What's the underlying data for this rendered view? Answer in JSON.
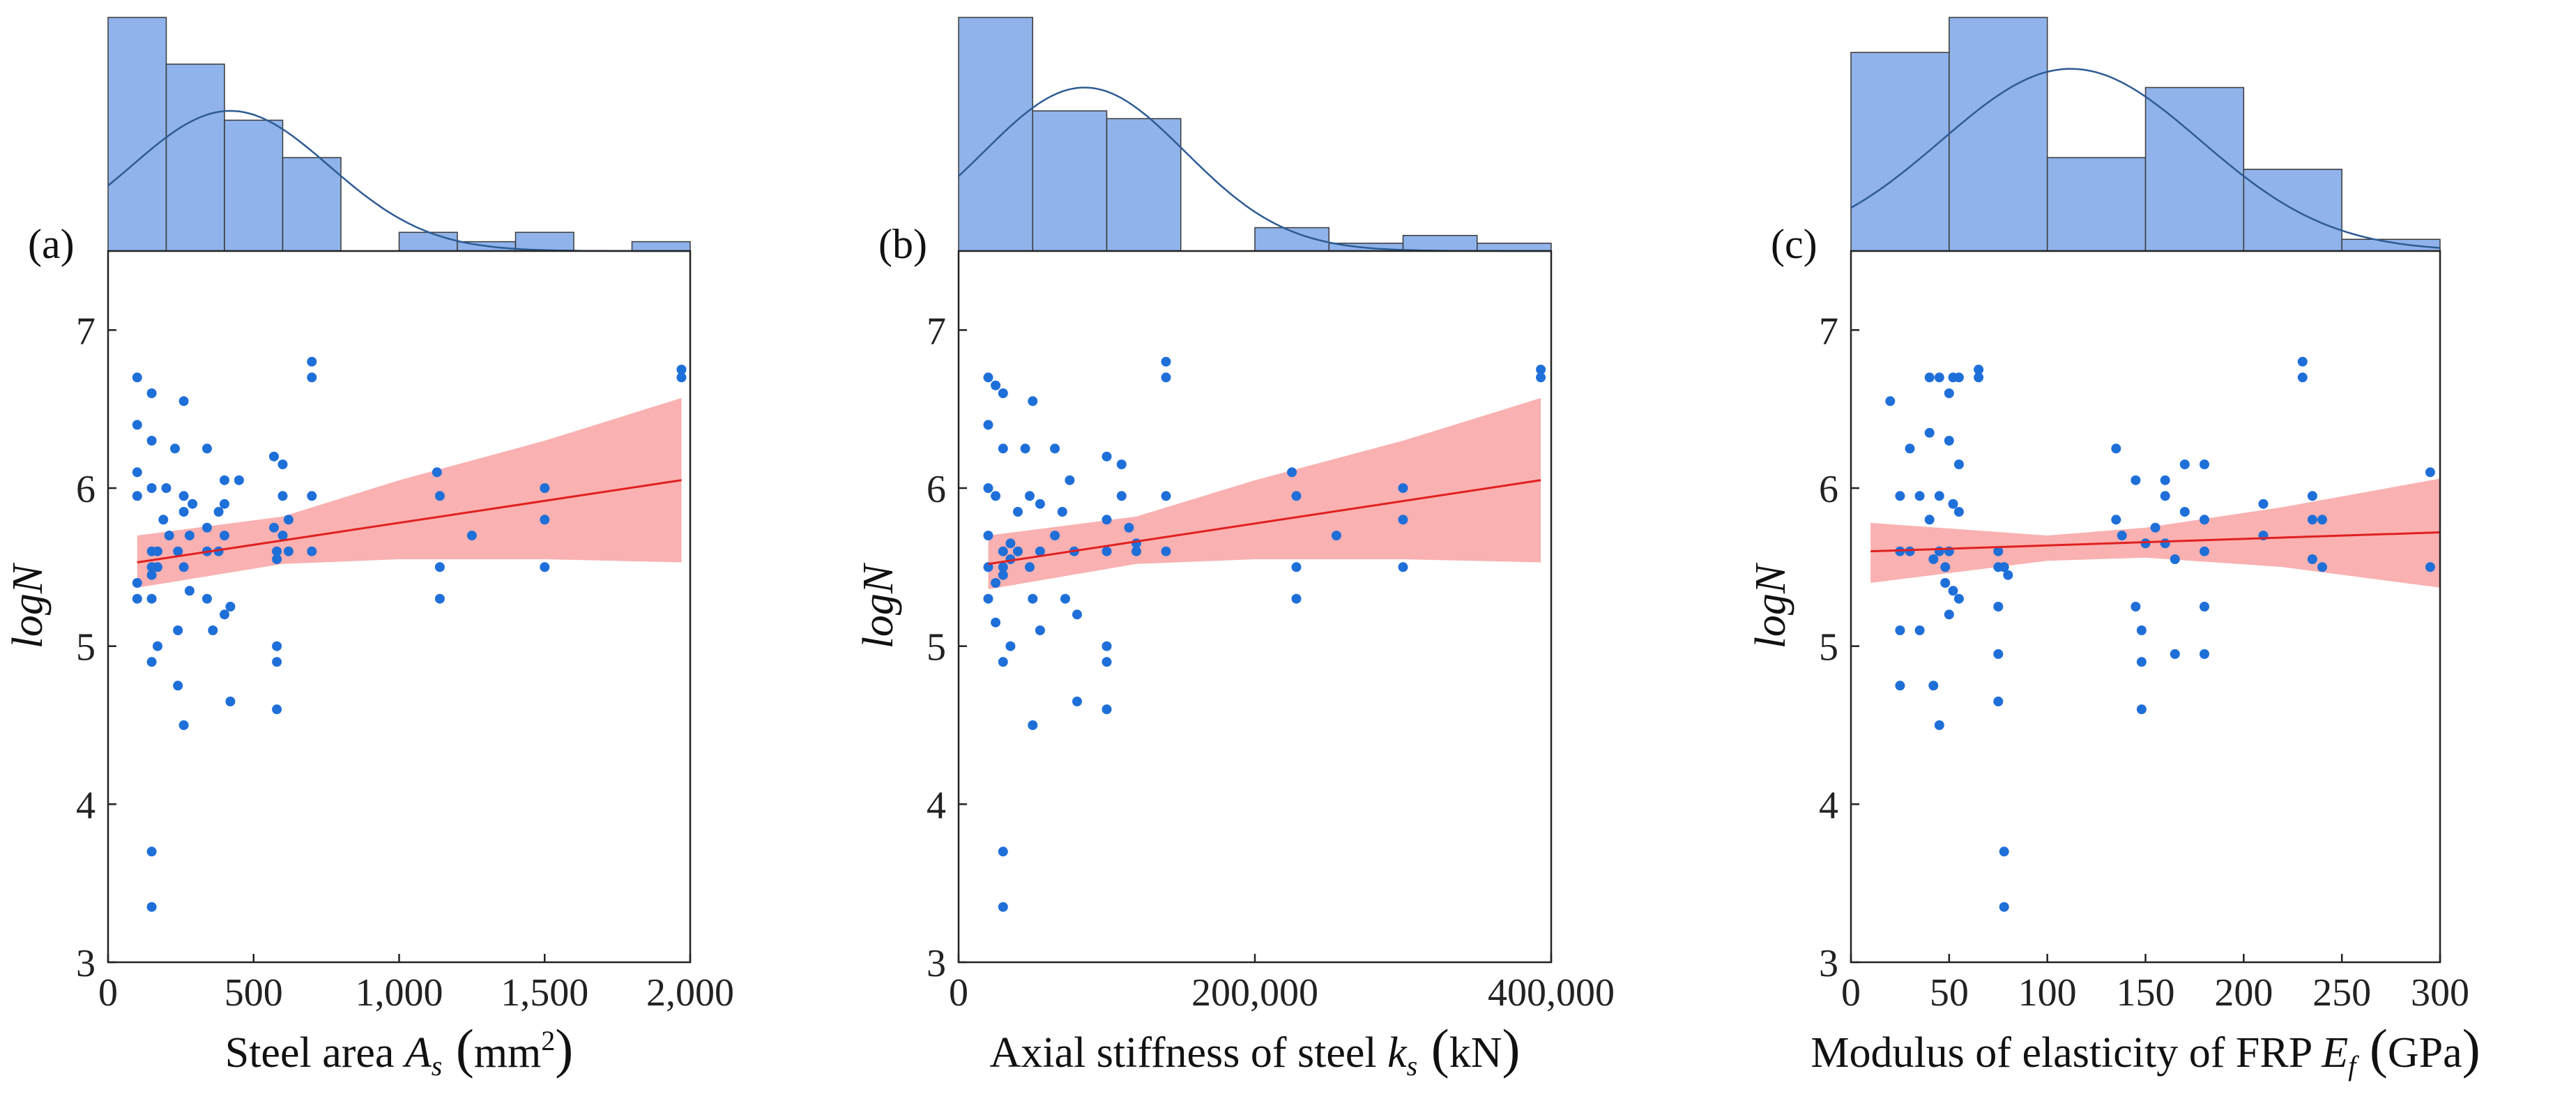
{
  "chart_data": [
    {
      "type": "scatter",
      "panel_label": "(a)",
      "xlabel": "Steel area",
      "xsymbol": "A",
      "xsub": "s",
      "xunit": "mm",
      "xunit_sup": "2",
      "ylabel": "logN",
      "xlim": [
        0,
        2000
      ],
      "ylim": [
        3,
        7.5
      ],
      "xticks": [
        0,
        500,
        1000,
        1500,
        2000
      ],
      "xtick_labels": [
        "0",
        "500",
        "1,000",
        "1,500",
        "2,000"
      ],
      "yticks": [
        3,
        4,
        5,
        6,
        7
      ],
      "ytick_labels": [
        "3",
        "4",
        "5",
        "6",
        "7"
      ],
      "fit": {
        "x0": 100,
        "y0": 5.53,
        "x1": 1970,
        "y1": 6.05
      },
      "ci": {
        "lower": [
          [
            100,
            5.37
          ],
          [
            600,
            5.52
          ],
          [
            1000,
            5.55
          ],
          [
            1500,
            5.55
          ],
          [
            1970,
            5.53
          ]
        ],
        "upper": [
          [
            100,
            5.7
          ],
          [
            600,
            5.82
          ],
          [
            1000,
            6.05
          ],
          [
            1500,
            6.3
          ],
          [
            1970,
            6.57
          ]
        ]
      },
      "histogram": {
        "bins": [
          [
            0,
            200
          ],
          [
            200,
            400
          ],
          [
            400,
            600
          ],
          [
            600,
            800
          ],
          [
            1000,
            1200
          ],
          [
            1200,
            1400
          ],
          [
            1400,
            1600
          ],
          [
            1800,
            2000
          ]
        ],
        "counts": [
          25,
          20,
          14,
          10,
          2,
          1,
          2,
          1
        ],
        "kde_peak": 420
      },
      "points": [
        [
          100,
          6.7
        ],
        [
          100,
          6.4
        ],
        [
          100,
          6.1
        ],
        [
          100,
          5.95
        ],
        [
          100,
          5.4
        ],
        [
          100,
          5.3
        ],
        [
          150,
          6.6
        ],
        [
          150,
          6.3
        ],
        [
          150,
          6.0
        ],
        [
          150,
          5.6
        ],
        [
          150,
          5.5
        ],
        [
          150,
          5.45
        ],
        [
          150,
          5.3
        ],
        [
          150,
          4.9
        ],
        [
          150,
          3.7
        ],
        [
          150,
          3.35
        ],
        [
          170,
          5.6
        ],
        [
          170,
          5.5
        ],
        [
          170,
          5.0
        ],
        [
          190,
          5.8
        ],
        [
          200,
          6.0
        ],
        [
          210,
          5.7
        ],
        [
          230,
          6.25
        ],
        [
          240,
          5.6
        ],
        [
          240,
          5.1
        ],
        [
          240,
          4.75
        ],
        [
          260,
          6.55
        ],
        [
          260,
          5.95
        ],
        [
          260,
          5.85
        ],
        [
          260,
          5.5
        ],
        [
          260,
          4.5
        ],
        [
          280,
          5.7
        ],
        [
          280,
          5.35
        ],
        [
          290,
          5.9
        ],
        [
          340,
          6.25
        ],
        [
          340,
          5.75
        ],
        [
          340,
          5.6
        ],
        [
          340,
          5.3
        ],
        [
          360,
          5.1
        ],
        [
          380,
          5.85
        ],
        [
          380,
          5.6
        ],
        [
          400,
          6.05
        ],
        [
          400,
          5.9
        ],
        [
          400,
          5.7
        ],
        [
          400,
          5.2
        ],
        [
          420,
          5.25
        ],
        [
          420,
          4.65
        ],
        [
          450,
          6.05
        ],
        [
          570,
          6.2
        ],
        [
          570,
          5.75
        ],
        [
          580,
          5.6
        ],
        [
          580,
          5.55
        ],
        [
          580,
          5.0
        ],
        [
          580,
          4.9
        ],
        [
          580,
          4.6
        ],
        [
          600,
          6.15
        ],
        [
          600,
          5.95
        ],
        [
          600,
          5.7
        ],
        [
          620,
          5.8
        ],
        [
          620,
          5.6
        ],
        [
          700,
          6.8
        ],
        [
          700,
          6.7
        ],
        [
          700,
          5.95
        ],
        [
          700,
          5.6
        ],
        [
          1130,
          6.1
        ],
        [
          1140,
          5.95
        ],
        [
          1140,
          5.5
        ],
        [
          1140,
          5.3
        ],
        [
          1250,
          5.7
        ],
        [
          1500,
          6.0
        ],
        [
          1500,
          5.8
        ],
        [
          1500,
          5.5
        ],
        [
          1970,
          6.75
        ],
        [
          1970,
          6.7
        ]
      ]
    },
    {
      "type": "scatter",
      "panel_label": "(b)",
      "xlabel": "Axial stiffness of steel",
      "xsymbol": "k",
      "xsub": "s",
      "xunit": "kN",
      "xunit_sup": "",
      "ylabel": "logN",
      "xlim": [
        0,
        400000
      ],
      "ylim": [
        3,
        7.5
      ],
      "xticks": [
        0,
        200000,
        400000
      ],
      "xtick_labels": [
        "0",
        "200,000",
        "400,000"
      ],
      "yticks": [
        3,
        4,
        5,
        6,
        7
      ],
      "ytick_labels": [
        "3",
        "4",
        "5",
        "6",
        "7"
      ],
      "fit": {
        "x0": 20000,
        "y0": 5.52,
        "x1": 393000,
        "y1": 6.05
      },
      "ci": {
        "lower": [
          [
            20000,
            5.36
          ],
          [
            120000,
            5.52
          ],
          [
            200000,
            5.55
          ],
          [
            300000,
            5.55
          ],
          [
            393000,
            5.53
          ]
        ],
        "upper": [
          [
            20000,
            5.7
          ],
          [
            120000,
            5.82
          ],
          [
            200000,
            6.05
          ],
          [
            300000,
            6.3
          ],
          [
            393000,
            6.57
          ]
        ]
      },
      "histogram": {
        "bins": [
          [
            0,
            50000
          ],
          [
            50000,
            100000
          ],
          [
            100000,
            150000
          ],
          [
            200000,
            250000
          ],
          [
            250000,
            300000
          ],
          [
            300000,
            350000
          ],
          [
            350000,
            400000
          ]
        ],
        "counts": [
          30,
          18,
          17,
          3,
          1,
          2,
          1
        ],
        "kde_peak": 85000
      },
      "points": [
        [
          20000,
          6.7
        ],
        [
          20000,
          6.4
        ],
        [
          20000,
          6.0
        ],
        [
          20000,
          5.7
        ],
        [
          20000,
          5.5
        ],
        [
          20000,
          5.3
        ],
        [
          25000,
          6.65
        ],
        [
          25000,
          5.95
        ],
        [
          25000,
          5.4
        ],
        [
          25000,
          5.15
        ],
        [
          30000,
          6.6
        ],
        [
          30000,
          6.25
        ],
        [
          30000,
          5.6
        ],
        [
          30000,
          5.5
        ],
        [
          30000,
          5.45
        ],
        [
          30000,
          4.9
        ],
        [
          30000,
          3.7
        ],
        [
          30000,
          3.35
        ],
        [
          35000,
          5.65
        ],
        [
          35000,
          5.55
        ],
        [
          35000,
          5.0
        ],
        [
          40000,
          5.85
        ],
        [
          40000,
          5.6
        ],
        [
          45000,
          6.25
        ],
        [
          48000,
          5.95
        ],
        [
          48000,
          5.5
        ],
        [
          50000,
          6.55
        ],
        [
          50000,
          5.3
        ],
        [
          50000,
          4.5
        ],
        [
          55000,
          5.9
        ],
        [
          55000,
          5.6
        ],
        [
          55000,
          5.1
        ],
        [
          65000,
          6.25
        ],
        [
          65000,
          5.7
        ],
        [
          70000,
          5.85
        ],
        [
          72000,
          5.3
        ],
        [
          75000,
          6.05
        ],
        [
          78000,
          5.6
        ],
        [
          80000,
          5.2
        ],
        [
          80000,
          4.65
        ],
        [
          100000,
          6.2
        ],
        [
          100000,
          5.8
        ],
        [
          100000,
          5.6
        ],
        [
          100000,
          5.0
        ],
        [
          100000,
          4.9
        ],
        [
          100000,
          4.6
        ],
        [
          110000,
          6.15
        ],
        [
          110000,
          5.95
        ],
        [
          115000,
          5.75
        ],
        [
          120000,
          5.65
        ],
        [
          120000,
          5.6
        ],
        [
          140000,
          6.8
        ],
        [
          140000,
          6.7
        ],
        [
          140000,
          5.95
        ],
        [
          140000,
          5.6
        ],
        [
          225000,
          6.1
        ],
        [
          228000,
          5.95
        ],
        [
          228000,
          5.5
        ],
        [
          228000,
          5.3
        ],
        [
          255000,
          5.7
        ],
        [
          300000,
          6.0
        ],
        [
          300000,
          5.8
        ],
        [
          300000,
          5.5
        ],
        [
          393000,
          6.75
        ],
        [
          393000,
          6.7
        ]
      ]
    },
    {
      "type": "scatter",
      "panel_label": "(c)",
      "xlabel": "Modulus of elasticity of FRP",
      "xsymbol": "E",
      "xsub": "f",
      "xunit": "GPa",
      "xunit_sup": "",
      "ylabel": "logN",
      "xlim": [
        0,
        300
      ],
      "ylim": [
        3,
        7.5
      ],
      "xticks": [
        0,
        50,
        100,
        150,
        200,
        250,
        300
      ],
      "xtick_labels": [
        "0",
        "50",
        "100",
        "150",
        "200",
        "250",
        "300"
      ],
      "yticks": [
        3,
        4,
        5,
        6,
        7
      ],
      "ytick_labels": [
        "3",
        "4",
        "5",
        "6",
        "7"
      ],
      "fit": {
        "x0": 10,
        "y0": 5.6,
        "x1": 300,
        "y1": 5.72
      },
      "ci": {
        "lower": [
          [
            10,
            5.4
          ],
          [
            100,
            5.54
          ],
          [
            150,
            5.56
          ],
          [
            220,
            5.5
          ],
          [
            300,
            5.37
          ]
        ],
        "upper": [
          [
            10,
            5.78
          ],
          [
            100,
            5.7
          ],
          [
            150,
            5.75
          ],
          [
            220,
            5.88
          ],
          [
            300,
            6.06
          ]
        ]
      },
      "histogram": {
        "bins": [
          [
            0,
            50
          ],
          [
            50,
            100
          ],
          [
            100,
            150
          ],
          [
            150,
            200
          ],
          [
            200,
            250
          ],
          [
            250,
            300
          ]
        ],
        "counts": [
          17,
          20,
          8,
          14,
          7,
          1
        ],
        "kde_peak": 112
      },
      "points": [
        [
          20,
          6.55
        ],
        [
          25,
          5.95
        ],
        [
          25,
          5.6
        ],
        [
          25,
          5.1
        ],
        [
          25,
          4.75
        ],
        [
          30,
          6.25
        ],
        [
          30,
          5.6
        ],
        [
          35,
          5.95
        ],
        [
          35,
          5.1
        ],
        [
          40,
          6.7
        ],
        [
          40,
          6.35
        ],
        [
          40,
          5.8
        ],
        [
          42,
          5.55
        ],
        [
          42,
          4.75
        ],
        [
          45,
          6.7
        ],
        [
          45,
          5.95
        ],
        [
          45,
          5.6
        ],
        [
          45,
          4.5
        ],
        [
          48,
          5.5
        ],
        [
          48,
          5.4
        ],
        [
          50,
          6.6
        ],
        [
          50,
          6.3
        ],
        [
          50,
          5.6
        ],
        [
          50,
          5.2
        ],
        [
          52,
          6.7
        ],
        [
          52,
          5.9
        ],
        [
          52,
          5.35
        ],
        [
          55,
          6.7
        ],
        [
          55,
          6.15
        ],
        [
          55,
          5.85
        ],
        [
          55,
          5.3
        ],
        [
          65,
          6.75
        ],
        [
          65,
          6.7
        ],
        [
          75,
          5.6
        ],
        [
          75,
          5.5
        ],
        [
          75,
          5.25
        ],
        [
          75,
          4.95
        ],
        [
          75,
          4.65
        ],
        [
          78,
          5.5
        ],
        [
          78,
          3.7
        ],
        [
          78,
          3.35
        ],
        [
          80,
          5.45
        ],
        [
          135,
          6.25
        ],
        [
          135,
          5.8
        ],
        [
          138,
          5.7
        ],
        [
          145,
          6.05
        ],
        [
          145,
          5.25
        ],
        [
          148,
          5.1
        ],
        [
          148,
          4.9
        ],
        [
          148,
          4.6
        ],
        [
          150,
          5.65
        ],
        [
          155,
          5.75
        ],
        [
          160,
          6.05
        ],
        [
          160,
          5.95
        ],
        [
          160,
          5.65
        ],
        [
          165,
          5.55
        ],
        [
          165,
          4.95
        ],
        [
          170,
          6.15
        ],
        [
          170,
          5.85
        ],
        [
          180,
          6.15
        ],
        [
          180,
          5.8
        ],
        [
          180,
          5.6
        ],
        [
          180,
          5.25
        ],
        [
          180,
          4.95
        ],
        [
          210,
          5.9
        ],
        [
          210,
          5.7
        ],
        [
          230,
          6.8
        ],
        [
          230,
          6.7
        ],
        [
          235,
          5.95
        ],
        [
          235,
          5.8
        ],
        [
          235,
          5.55
        ],
        [
          240,
          5.8
        ],
        [
          240,
          5.5
        ],
        [
          295,
          6.1
        ],
        [
          295,
          5.5
        ]
      ]
    }
  ]
}
